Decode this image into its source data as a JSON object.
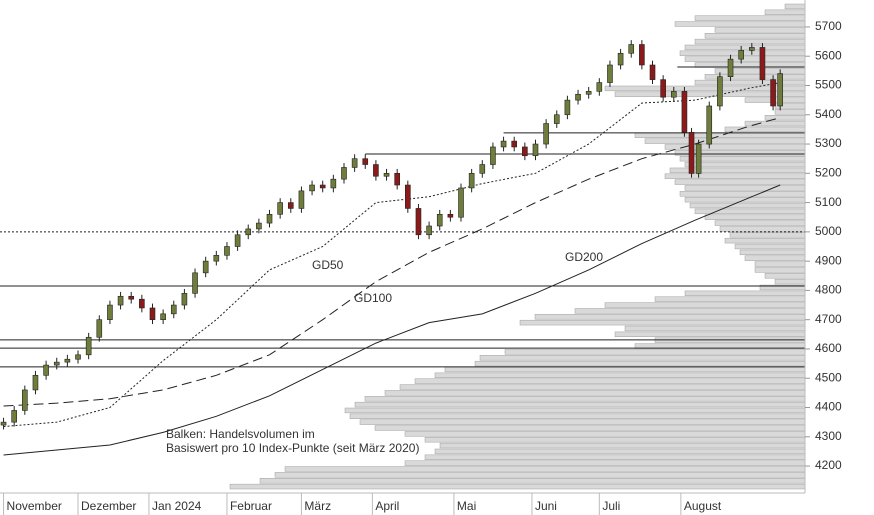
{
  "chart_data": {
    "type": "candlestick",
    "xlim": [
      -1,
      226
    ],
    "ylim": [
      4108,
      5792
    ],
    "xticks": [
      {
        "value": 0,
        "label": "November"
      },
      {
        "value": 21,
        "label": "Dezember"
      },
      {
        "value": 41,
        "label": "Jan 2024"
      },
      {
        "value": 63,
        "label": "Februar"
      },
      {
        "value": 84,
        "label": "März"
      },
      {
        "value": 104,
        "label": "April"
      },
      {
        "value": 127,
        "label": "Mai"
      },
      {
        "value": 149,
        "label": "Juni"
      },
      {
        "value": 168,
        "label": "Juli"
      },
      {
        "value": 191,
        "label": "August"
      }
    ],
    "yticks": [
      4200,
      4300,
      4400,
      4500,
      4600,
      4700,
      4800,
      4900,
      5000,
      5100,
      5200,
      5300,
      5400,
      5500,
      5600,
      5700
    ],
    "up_color": "#6e7d3c",
    "down_color": "#8b1a1a",
    "x": [
      0,
      3,
      6,
      9,
      12,
      15,
      18,
      21,
      24,
      27,
      30,
      33,
      36,
      39,
      42,
      45,
      48,
      51,
      54,
      57,
      60,
      63,
      66,
      69,
      72,
      75,
      78,
      81,
      84,
      87,
      90,
      93,
      96,
      99,
      102,
      105,
      108,
      111,
      114,
      117,
      120,
      123,
      126,
      129,
      132,
      135,
      138,
      141,
      144,
      147,
      150,
      153,
      156,
      159,
      162,
      165,
      168,
      171,
      174,
      177,
      180,
      183,
      186,
      189,
      192,
      194,
      196,
      199,
      202,
      205,
      208,
      211,
      214,
      217,
      219
    ],
    "open": [
      4340,
      4350,
      4390,
      4460,
      4510,
      4545,
      4555,
      4565,
      4580,
      4640,
      4700,
      4750,
      4780,
      4770,
      4740,
      4700,
      4720,
      4750,
      4790,
      4860,
      4900,
      4920,
      4950,
      4990,
      5010,
      5030,
      5060,
      5100,
      5080,
      5140,
      5160,
      5150,
      5180,
      5220,
      5250,
      5230,
      5190,
      5200,
      5160,
      5080,
      4990,
      5020,
      5060,
      5050,
      5150,
      5200,
      5230,
      5290,
      5310,
      5290,
      5260,
      5300,
      5370,
      5400,
      5450,
      5470,
      5480,
      5510,
      5570,
      5610,
      5640,
      5570,
      5520,
      5460,
      5480,
      5340,
      5200,
      5300,
      5430,
      5530,
      5590,
      5620,
      5630,
      5520,
      5430
    ],
    "high": [
      4365,
      4405,
      4475,
      4525,
      4560,
      4570,
      4580,
      4595,
      4655,
      4715,
      4765,
      4795,
      4795,
      4785,
      4755,
      4735,
      4765,
      4805,
      4875,
      4915,
      4935,
      4965,
      5005,
      5025,
      5045,
      5075,
      5115,
      5115,
      5155,
      5175,
      5175,
      5195,
      5235,
      5265,
      5265,
      5245,
      5215,
      5215,
      5175,
      5095,
      5035,
      5075,
      5075,
      5165,
      5215,
      5245,
      5305,
      5325,
      5325,
      5305,
      5315,
      5385,
      5415,
      5465,
      5485,
      5495,
      5525,
      5585,
      5625,
      5655,
      5655,
      5585,
      5535,
      5495,
      5495,
      5355,
      5315,
      5445,
      5545,
      5605,
      5635,
      5645,
      5645,
      5535,
      5555
    ],
    "low": [
      4325,
      4335,
      4375,
      4445,
      4495,
      4530,
      4540,
      4550,
      4565,
      4625,
      4685,
      4735,
      4755,
      4725,
      4685,
      4685,
      4705,
      4735,
      4775,
      4845,
      4885,
      4905,
      4935,
      4975,
      4995,
      5015,
      5045,
      5065,
      5065,
      5125,
      5135,
      5135,
      5165,
      5205,
      5215,
      5175,
      5175,
      5145,
      5065,
      4975,
      4975,
      5005,
      5035,
      5035,
      5135,
      5185,
      5215,
      5275,
      5275,
      5245,
      5245,
      5285,
      5355,
      5385,
      5435,
      5455,
      5465,
      5495,
      5555,
      5595,
      5555,
      5505,
      5445,
      5445,
      5325,
      5185,
      5185,
      5285,
      5415,
      5515,
      5575,
      5605,
      5505,
      5415,
      5415
    ],
    "close": [
      4350,
      4390,
      4460,
      4510,
      4545,
      4555,
      4565,
      4580,
      4640,
      4700,
      4750,
      4780,
      4770,
      4740,
      4700,
      4720,
      4750,
      4790,
      4860,
      4900,
      4920,
      4950,
      4990,
      5010,
      5030,
      5060,
      5100,
      5080,
      5140,
      5160,
      5150,
      5180,
      5220,
      5250,
      5230,
      5190,
      5200,
      5160,
      5080,
      4990,
      5020,
      5060,
      5050,
      5150,
      5200,
      5230,
      5290,
      5310,
      5290,
      5260,
      5300,
      5370,
      5400,
      5450,
      5470,
      5480,
      5510,
      5570,
      5610,
      5640,
      5570,
      5520,
      5460,
      5480,
      5340,
      5200,
      5300,
      5430,
      5530,
      5590,
      5620,
      5630,
      5520,
      5430,
      5540
    ],
    "series": [
      {
        "name": "GD50",
        "color": "#222222",
        "style": "dotted",
        "x": [
          0,
          15,
          30,
          45,
          60,
          75,
          90,
          105,
          120,
          135,
          150,
          165,
          180,
          195,
          210,
          219
        ],
        "values": [
          4335,
          4350,
          4400,
          4560,
          4700,
          4870,
          4950,
          5100,
          5120,
          5165,
          5200,
          5300,
          5440,
          5450,
          5490,
          5510
        ]
      },
      {
        "name": "GD100",
        "color": "#222222",
        "style": "dashed",
        "x": [
          0,
          15,
          30,
          45,
          60,
          75,
          90,
          105,
          120,
          135,
          150,
          165,
          180,
          195,
          210,
          219
        ],
        "values": [
          4405,
          4415,
          4430,
          4460,
          4510,
          4580,
          4700,
          4830,
          4930,
          5010,
          5100,
          5180,
          5250,
          5300,
          5360,
          5390
        ]
      },
      {
        "name": "GD200",
        "color": "#222222",
        "style": "solid",
        "x": [
          0,
          15,
          30,
          45,
          60,
          75,
          90,
          105,
          120,
          135,
          150,
          165,
          180,
          195,
          210,
          219
        ],
        "values": [
          4238,
          4255,
          4272,
          4315,
          4370,
          4440,
          4530,
          4620,
          4690,
          4720,
          4790,
          4870,
          4960,
          5040,
          5115,
          5160
        ]
      }
    ],
    "levels": [
      {
        "value": 4815
      },
      {
        "value": 4631
      },
      {
        "value": 4603
      },
      {
        "value": 4539
      },
      {
        "value": 5338,
        "from": 141
      },
      {
        "value": 5266,
        "from": 102
      },
      {
        "value": 5563,
        "from": 190
      },
      {
        "value": 5000,
        "style": "dotted"
      }
    ],
    "profile": {
      "color": "#d9d9d9",
      "bins": [
        4120,
        4140,
        4160,
        4180,
        4200,
        4220,
        4240,
        4260,
        4280,
        4300,
        4320,
        4340,
        4360,
        4380,
        4400,
        4420,
        4440,
        4460,
        4480,
        4500,
        4520,
        4540,
        4560,
        4580,
        4600,
        4620,
        4640,
        4660,
        4680,
        4700,
        4720,
        4740,
        4760,
        4780,
        4800,
        4820,
        4840,
        4860,
        4880,
        4900,
        4920,
        4940,
        4960,
        4980,
        5000,
        5020,
        5040,
        5060,
        5080,
        5100,
        5120,
        5140,
        5160,
        5180,
        5200,
        5220,
        5240,
        5260,
        5280,
        5300,
        5320,
        5340,
        5360,
        5380,
        5400,
        5420,
        5440,
        5460,
        5480,
        5500,
        5520,
        5540,
        5560,
        5580,
        5600,
        5620,
        5640,
        5660,
        5680,
        5700,
        5720,
        5740,
        5760,
        5780
      ],
      "values": [
        575,
        545,
        530,
        520,
        400,
        380,
        370,
        365,
        380,
        400,
        430,
        445,
        455,
        460,
        450,
        440,
        420,
        405,
        390,
        370,
        360,
        330,
        325,
        300,
        170,
        150,
        190,
        180,
        285,
        270,
        230,
        200,
        150,
        120,
        45,
        30,
        40,
        50,
        50,
        60,
        65,
        70,
        80,
        75,
        85,
        90,
        100,
        110,
        115,
        120,
        125,
        120,
        130,
        140,
        135,
        120,
        125,
        130,
        140,
        160,
        170,
        80,
        60,
        40,
        30,
        30,
        60,
        190,
        200,
        110,
        100,
        90,
        110,
        120,
        125,
        120,
        110,
        100,
        90,
        130,
        110,
        40,
        20
      ]
    },
    "annotation": [
      "Balken: Handelsvolumen im",
      "Basiswert pro 10 Index-Punkte (seit März 2020)"
    ]
  }
}
